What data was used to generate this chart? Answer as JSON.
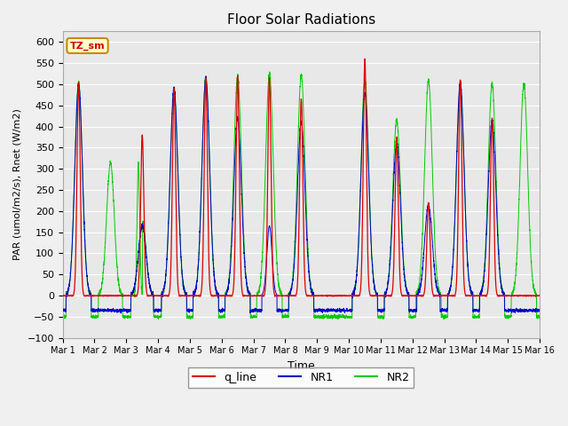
{
  "title": "Floor Solar Radiations",
  "xlabel": "Time",
  "ylabel": "PAR (umol/m2/s), Rnet (W/m2)",
  "ylim": [
    -100,
    625
  ],
  "yticks": [
    -100,
    -50,
    0,
    50,
    100,
    150,
    200,
    250,
    300,
    350,
    400,
    450,
    500,
    550,
    600
  ],
  "annotation_text": "TZ_sm",
  "annotation_bg": "#ffffcc",
  "annotation_border": "#cc8800",
  "line_colors": {
    "q_line": "#dd0000",
    "NR1": "#0000cc",
    "NR2": "#00cc00"
  },
  "background_color": "#e8e8e8",
  "grid_color": "#ffffff",
  "n_days": 15,
  "legend_labels": [
    "q_line",
    "NR1",
    "NR2"
  ],
  "legend_colors": [
    "#dd0000",
    "#0000cc",
    "#00cc00"
  ],
  "fig_bg": "#f0f0f0"
}
